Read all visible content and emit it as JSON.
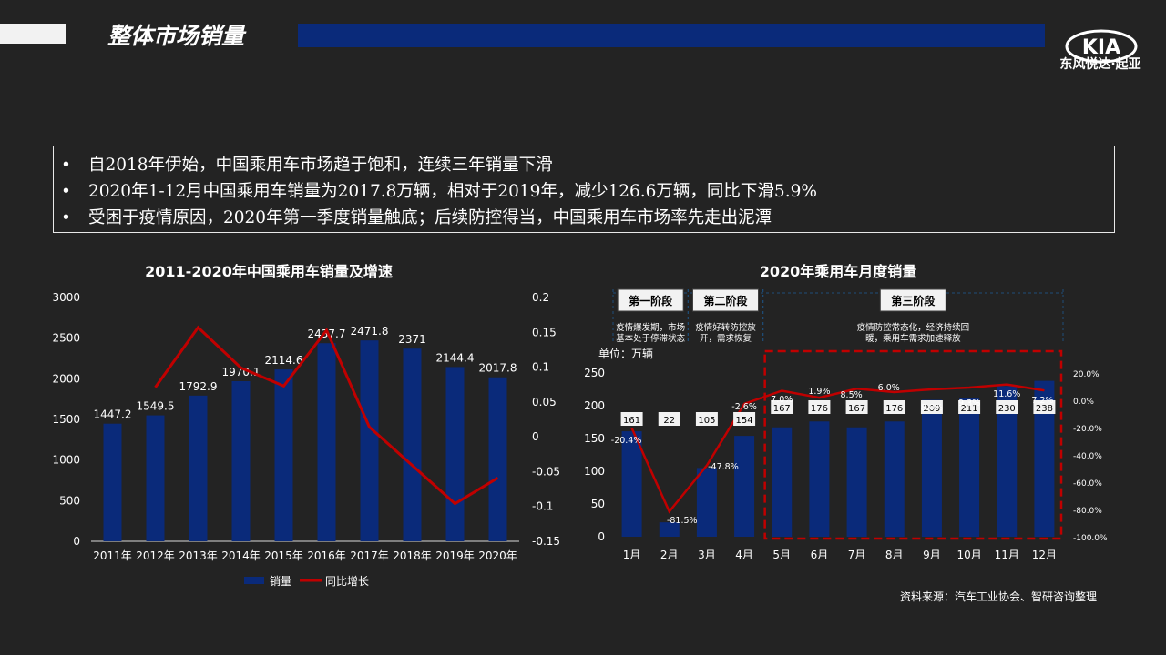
{
  "header": {
    "title": "整体市场销量",
    "logo_text": "KIA",
    "brand_cn": "东风悦达·起亚"
  },
  "bullets": [
    "自2018年伊始，中国乘用车市场趋于饱和，连续三年销量下滑",
    "2020年1-12月中国乘用车销量为2017.8万辆，相对于2019年，减少126.6万辆，同比下滑5.9%",
    "受困于疫情原因，2020年第一季度销量触底；后续防控得当，中国乘用车市场率先走出泥潭"
  ],
  "bullet_marker": "•",
  "source": "资料来源：汽车工业协会、智研咨询整理",
  "colors": {
    "bar": "#0a2a7a",
    "line": "#c00000",
    "dash_box": "#c00000"
  },
  "chart_data": [
    {
      "type": "bar",
      "title": "2011-2020年中国乘用车销量及增速",
      "categories": [
        "2011年",
        "2012年",
        "2013年",
        "2014年",
        "2015年",
        "2016年",
        "2017年",
        "2018年",
        "2019年",
        "2020年"
      ],
      "series": [
        {
          "name": "销量",
          "type": "bar",
          "values": [
            1447.2,
            1549.5,
            1792.9,
            1970.1,
            2114.6,
            2437.7,
            2471.8,
            2371,
            2144.4,
            2017.8
          ],
          "labels": [
            "1447.2",
            "1549.5",
            "1792.9",
            "1970.1",
            "2114.6",
            "2437.7",
            "2471.8",
            "2371",
            "2144.4",
            "2017.8"
          ]
        },
        {
          "name": "同比增长",
          "type": "line",
          "axis": "right",
          "values": [
            null,
            0.071,
            0.157,
            0.099,
            0.073,
            0.153,
            0.014,
            -0.041,
            -0.096,
            -0.059
          ]
        }
      ],
      "ylim": [
        0,
        3000
      ],
      "yticks": [
        "0",
        "500",
        "1000",
        "1500",
        "2000",
        "2500",
        "3000"
      ],
      "y2lim": [
        -0.15,
        0.2
      ],
      "y2ticks": [
        "-0.15",
        "-0.1",
        "-0.05",
        "0",
        "0.05",
        "0.1",
        "0.15",
        "0.2"
      ],
      "legend": "bottom",
      "grid": false
    },
    {
      "type": "bar",
      "title": "2020年乘用车月度销量",
      "unit": "单位：万辆",
      "categories": [
        "1月",
        "2月",
        "3月",
        "4月",
        "5月",
        "6月",
        "7月",
        "8月",
        "9月",
        "10月",
        "11月",
        "12月"
      ],
      "series": [
        {
          "name": "销量",
          "type": "bar",
          "values": [
            161,
            22,
            105,
            154,
            167,
            176,
            167,
            176,
            209,
            211,
            230,
            238
          ],
          "labels": [
            "161",
            "22",
            "105",
            "154",
            "167",
            "176",
            "167",
            "176",
            "209",
            "211",
            "230",
            "238"
          ]
        },
        {
          "name": "同比增长",
          "type": "line",
          "axis": "right",
          "values": [
            -20.4,
            -81.5,
            -47.8,
            -2.6,
            7.0,
            1.9,
            8.5,
            6.0,
            8.0,
            9.3,
            11.6,
            7.2
          ],
          "labels": [
            "-20.4%",
            "-81.5%",
            "-47.8%",
            "-2.6%",
            "7.0%",
            "1.9%",
            "8.5%",
            "6.0%",
            "8.0%",
            "9.3%",
            "11.6%",
            "7.2%"
          ]
        }
      ],
      "ylim": [
        0,
        250
      ],
      "yticks": [
        "0",
        "50",
        "100",
        "150",
        "200",
        "250"
      ],
      "y2lim": [
        -100,
        20
      ],
      "y2ticks": [
        "-100.0%",
        "-80.0%",
        "-60.0%",
        "-40.0%",
        "-20.0%",
        "0.0%",
        "20.0%"
      ],
      "phases": [
        {
          "label": "第一阶段",
          "desc1": "疫情爆发期，市场",
          "desc2": "基本处于停滞状态",
          "from": 0,
          "to": 1
        },
        {
          "label": "第二阶段",
          "desc1": "疫情好转防控放",
          "desc2": "开，需求恢复",
          "from": 2,
          "to": 3
        },
        {
          "label": "第三阶段",
          "desc1": "疫情防控常态化，经济持续回",
          "desc2": "暖，乘用车需求加速释放",
          "from": 4,
          "to": 11
        }
      ],
      "highlight": {
        "from": 4,
        "to": 11
      },
      "grid": false
    }
  ]
}
